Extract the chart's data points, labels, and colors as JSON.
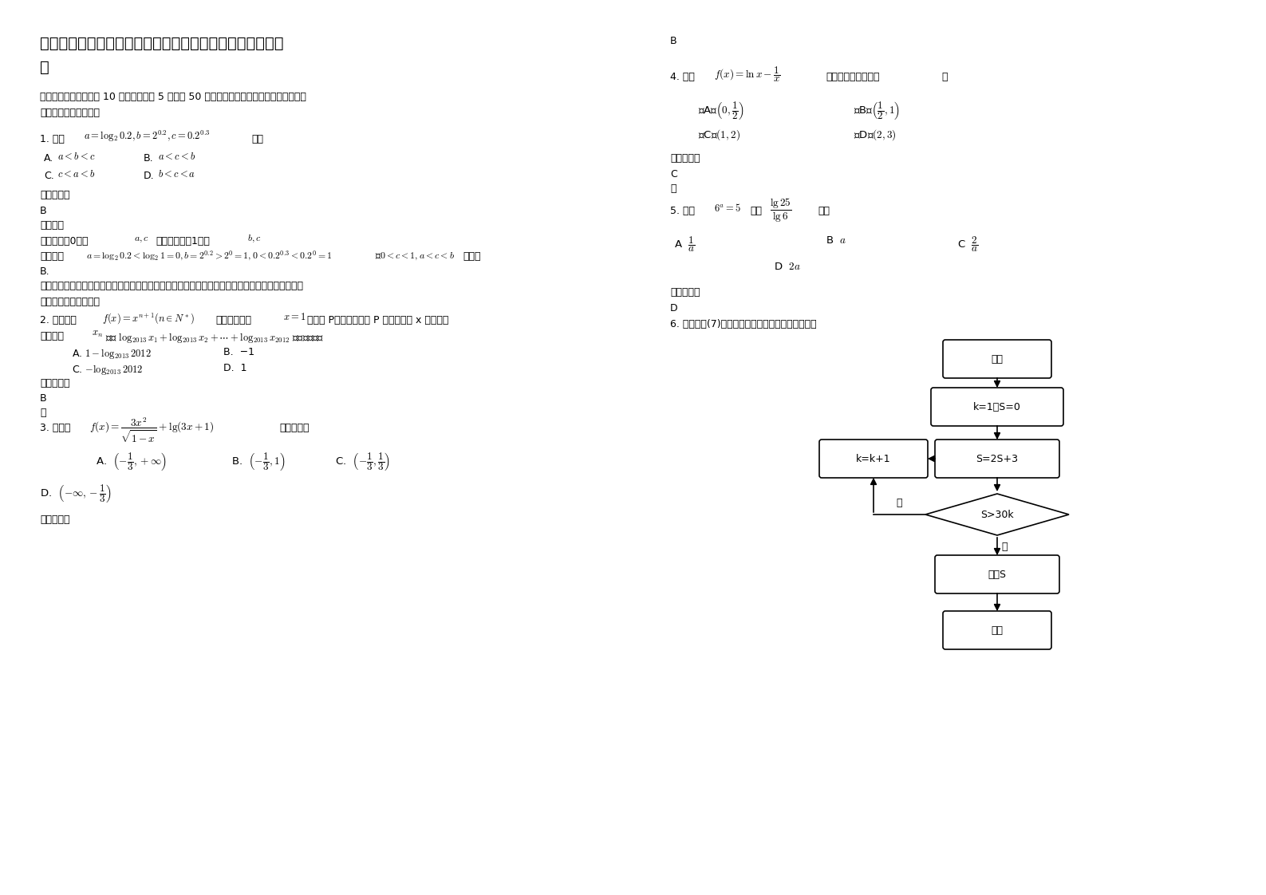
{
  "background_color": "#ffffff",
  "title_line1": "江苏省扬州市第六高级中学高三数学文下学期期末试题含解",
  "title_line2": "析",
  "section_header1": "一、选择题：本大题共 10 小题，每小题 5 分，共 50 分。在每小题给出的四个选项中，只有",
  "section_header2": "是一个符合题目要求的",
  "q1_prefix": "1. 已知",
  "q1_formula": "$a=\\log_2 0.2,b=2^{0.2},c=0.2^{0.3}$",
  "q1_suffix": "，则",
  "q1_optA": "$a<b<c$",
  "q1_optB": "$a<c<b$",
  "q1_optC": "$c<a<b$",
  "q1_optD": "$b<c<a$",
  "ans_label": "参考答案：",
  "q1_ans": "B",
  "analysis_label": "【分析】",
  "q1_analysis": "运用中间量0比较",
  "q1_analysis_ac": "$a,c$",
  "q1_analysis_mid": "，运用中间量1比较",
  "q1_analysis_bc": "$b,c$",
  "detail_label": "【详解】",
  "q1_detail": "$a=\\log_2 0.2<\\log_2 1=0, b=2^{0.2}>2^0=1, 0<0.2^{0.3}<0.2^0=1$",
  "q1_detail2": "则$0<c<1,a<c<b$",
  "q1_detail3": "，故选",
  "q1_detail_ans": "B.",
  "tip_label": "【点睛】",
  "q1_tip1": "本题考查指数和对数大小的比较，渗透了直观想象和数学运算素养。采取中间变量法，利用",
  "q1_tip2": "转化与化归思想解题。",
  "q2_prefix": "2. 已知函数",
  "q2_formula": "$f(x)=x^{n+1}(n\\in N^*)$",
  "q2_mid1": "的图象与直线",
  "q2_x1": "$x=1$",
  "q2_mid2": "交于点 P，若图象在点 P 处的切线与 x 轴交点的",
  "q2_line2a": "横坐标为",
  "q2_xn": "$x_n$",
  "q2_line2b": "，则 $\\log_{2013}x_1+\\log_{2013}x_2+\\cdots+\\log_{2013}x_{2012}$ 的值为（　）",
  "q2_optA": "A. $1-\\log_{2013}2012$",
  "q2_optB": "B. $-1$",
  "q2_optC": "C. $-\\log_{2013}2012$",
  "q2_optD": "D. $1$",
  "q2_ans": "B",
  "q2_tip": "略",
  "q3_prefix": "3. 函数，",
  "q3_formula": "$f(x)=\\dfrac{3x^2}{\\sqrt{1-x}}+\\lg(3x+1)$",
  "q3_suffix": "的定义域为",
  "q3_optA": "A.  $\\left(-\\dfrac{1}{3},+\\infty\\right)$",
  "q3_optB": "B.  $\\left(-\\dfrac{1}{3},1\\right)$",
  "q3_optC": "C.  $\\left(-\\dfrac{1}{3},\\dfrac{1}{3}\\right)$",
  "q3_optD": "D.  $\\left(-\\infty,-\\dfrac{1}{3}\\right)$",
  "q3_ans_label": "参考答案：",
  "right_B": "B",
  "q4_prefix": "4. 函数",
  "q4_formula": "$f(x)=\\ln x-\\dfrac{1}{x}$",
  "q4_suffix": "的零点所在区间是（",
  "q4_suffix2": "）",
  "q4_optA": "（A）$\\left(0,\\dfrac{1}{2}\\right)$",
  "q4_optB": "（B）$\\left(\\dfrac{1}{2},1\\right)$",
  "q4_optC": "（C）$(1,2)$",
  "q4_optD": "（D）$(2,3)$",
  "q4_ans": "C",
  "q4_tip": "略",
  "q5_prefix": "5. 已知$6^a=5$，则",
  "q5_formula": "$\\dfrac{\\lg 25}{\\lg 6}$",
  "q5_suffix": "等于",
  "q5_optA": "A  $\\dfrac{1}{a}$",
  "q5_optB": "B  $a$",
  "q5_optC": "C  $\\dfrac{2}{a}$",
  "q5_optD": "D  $2a$",
  "q5_ans": "D",
  "q6_text": "6. 执行如题(7)图所示的程序框图，则输出的结果为",
  "fc_start": "开始",
  "fc_init": "k=1，S=0",
  "fc_left": "k=k+1",
  "fc_right": "S=2S+3",
  "fc_diamond": "S>30k",
  "fc_yes": "是",
  "fc_no": "否",
  "fc_output": "输出S",
  "fc_end": "结束"
}
